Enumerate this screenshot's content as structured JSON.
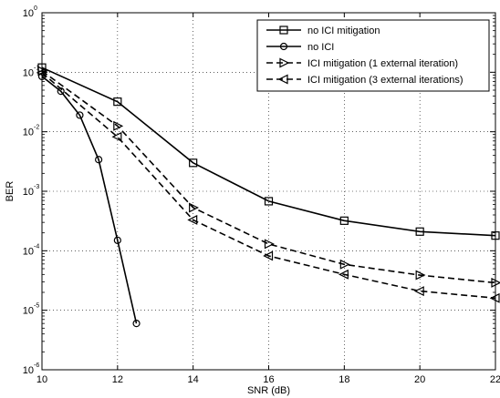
{
  "chart_data": {
    "type": "line",
    "xlabel": "SNR (dB)",
    "ylabel": "BER",
    "xlim": [
      10,
      22
    ],
    "ylim_log10": [
      -6,
      0
    ],
    "y_scale": "log",
    "grid": true,
    "grid_style": "dotted",
    "legend_position": "top-right",
    "x_ticks": [
      "10",
      "12",
      "14",
      "16",
      "18",
      "20",
      "22"
    ],
    "y_ticks": [
      {
        "base": "10",
        "exp": "0"
      },
      {
        "base": "10",
        "exp": "-1"
      },
      {
        "base": "10",
        "exp": "-2"
      },
      {
        "base": "10",
        "exp": "-3"
      },
      {
        "base": "10",
        "exp": "-4"
      },
      {
        "base": "10",
        "exp": "-5"
      },
      {
        "base": "10",
        "exp": "-6"
      }
    ],
    "series": [
      {
        "name": "no ICI mitigation",
        "marker": "square",
        "dash": false,
        "x": [
          10,
          12,
          14,
          16,
          18,
          20,
          22
        ],
        "y": [
          0.12,
          0.032,
          0.003,
          0.00068,
          0.00032,
          0.00021,
          0.00018
        ]
      },
      {
        "name": "no ICI",
        "marker": "circle",
        "dash": false,
        "x": [
          10,
          10.5,
          11,
          11.5,
          12,
          12.5
        ],
        "y": [
          0.085,
          0.048,
          0.019,
          0.0034,
          0.00015,
          6e-06
        ]
      },
      {
        "name": "ICI mitigation (1 external iteration)",
        "marker": "triangle-right",
        "dash": true,
        "x": [
          10,
          12,
          14,
          16,
          18,
          20,
          22
        ],
        "y": [
          0.105,
          0.0125,
          0.00053,
          0.00013,
          5.9e-05,
          3.9e-05,
          2.9e-05
        ]
      },
      {
        "name": "ICI mitigation (3 external iterations)",
        "marker": "triangle-left",
        "dash": true,
        "x": [
          10,
          12,
          14,
          16,
          18,
          20,
          22
        ],
        "y": [
          0.098,
          0.0082,
          0.00033,
          8.2e-05,
          4e-05,
          2.1e-05,
          1.6e-05
        ]
      }
    ]
  }
}
